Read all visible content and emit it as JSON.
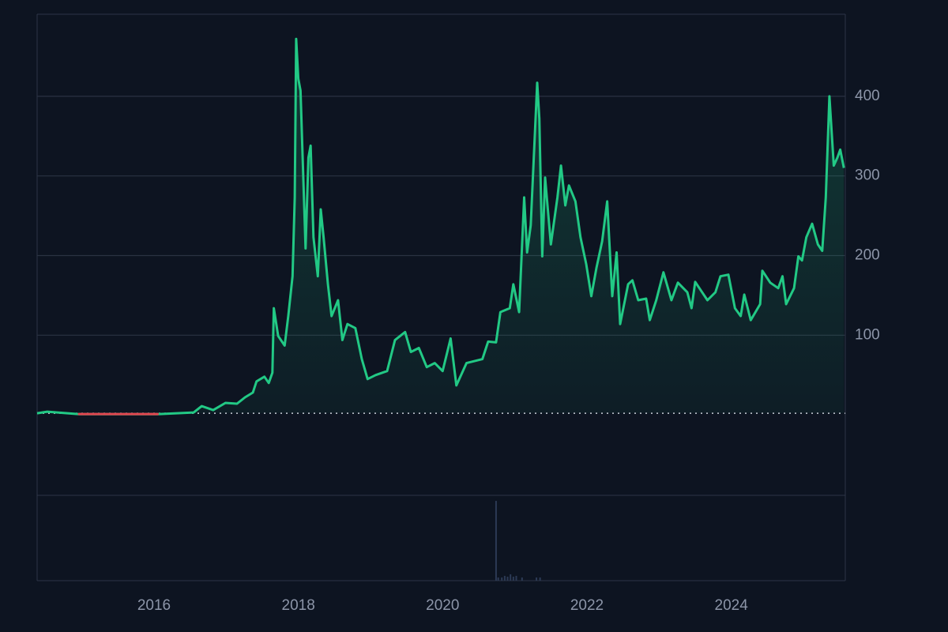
{
  "chart_data": [
    {
      "type": "line",
      "x": [
        2014.38,
        2014.52,
        2014.96,
        2015.18,
        2016.05,
        2016.55,
        2016.66,
        2016.82,
        2016.99,
        2017.15,
        2017.26,
        2017.37,
        2017.42,
        2017.53,
        2017.59,
        2017.64,
        2017.66,
        2017.72,
        2017.81,
        2017.86,
        2017.92,
        2017.95,
        2017.97,
        2018.0,
        2018.03,
        2018.06,
        2018.1,
        2018.14,
        2018.17,
        2018.21,
        2018.27,
        2018.31,
        2018.35,
        2018.41,
        2018.46,
        2018.55,
        2018.61,
        2018.68,
        2018.79,
        2018.88,
        2018.96,
        2019.07,
        2019.23,
        2019.34,
        2019.48,
        2019.56,
        2019.67,
        2019.78,
        2019.89,
        2020.0,
        2020.11,
        2020.19,
        2020.33,
        2020.55,
        2020.63,
        2020.74,
        2020.8,
        2020.93,
        2020.98,
        2021.06,
        2021.13,
        2021.17,
        2021.22,
        2021.31,
        2021.34,
        2021.38,
        2021.42,
        2021.5,
        2021.59,
        2021.64,
        2021.7,
        2021.75,
        2021.84,
        2021.91,
        2021.99,
        2022.06,
        2022.13,
        2022.21,
        2022.28,
        2022.35,
        2022.41,
        2022.46,
        2022.57,
        2022.63,
        2022.71,
        2022.82,
        2022.87,
        2022.96,
        2023.06,
        2023.17,
        2023.26,
        2023.39,
        2023.45,
        2023.5,
        2023.67,
        2023.78,
        2023.85,
        2023.96,
        2024.05,
        2024.13,
        2024.18,
        2024.27,
        2024.4,
        2024.43,
        2024.54,
        2024.65,
        2024.71,
        2024.76,
        2024.87,
        2024.93,
        2024.98,
        2025.04,
        2025.12,
        2025.2,
        2025.26,
        2025.31,
        2025.36,
        2025.42,
        2025.47,
        2025.51,
        2025.56
      ],
      "values": [
        2,
        4,
        1,
        1,
        1,
        3,
        11,
        6,
        15,
        14,
        22,
        28,
        42,
        48,
        40,
        53,
        134,
        99,
        87,
        124,
        174,
        273,
        472,
        422,
        407,
        323,
        209,
        323,
        338,
        223,
        174,
        258,
        223,
        164,
        124,
        144,
        94,
        114,
        109,
        70,
        45,
        50,
        55,
        94,
        104,
        79,
        84,
        60,
        65,
        55,
        96,
        37,
        65,
        70,
        92,
        91,
        129,
        134,
        164,
        129,
        273,
        204,
        238,
        417,
        372,
        199,
        298,
        214,
        273,
        313,
        263,
        288,
        268,
        223,
        189,
        149,
        184,
        218,
        268,
        149,
        204,
        114,
        164,
        169,
        144,
        146,
        119,
        144,
        179,
        144,
        166,
        154,
        134,
        167,
        144,
        154,
        174,
        176,
        134,
        124,
        151,
        119,
        139,
        181,
        166,
        159,
        174,
        139,
        159,
        199,
        194,
        223,
        240,
        214,
        206,
        273,
        400,
        313,
        323,
        333,
        310
      ],
      "baseline": 2,
      "color_up": "#22c985",
      "color_down": "#e0454f",
      "xlim": [
        2014.38,
        2025.58
      ],
      "xticks": [
        2016,
        2018,
        2020,
        2022,
        2024
      ],
      "ylim": [
        -101,
        503
      ],
      "yticks": [
        100,
        200,
        300,
        400
      ],
      "grid": true
    },
    {
      "type": "bar",
      "x": [
        2020.74,
        2020.77,
        2020.82,
        2020.86,
        2020.9,
        2020.94,
        2020.98,
        2021.02,
        2021.1,
        2021.3,
        2021.35
      ],
      "values": [
        100,
        4,
        4,
        6,
        5,
        8,
        5,
        6,
        4,
        4,
        4
      ],
      "color": "#2c3a55",
      "xlim": [
        2014.38,
        2025.58
      ],
      "ylim": [
        0,
        107
      ]
    }
  ]
}
